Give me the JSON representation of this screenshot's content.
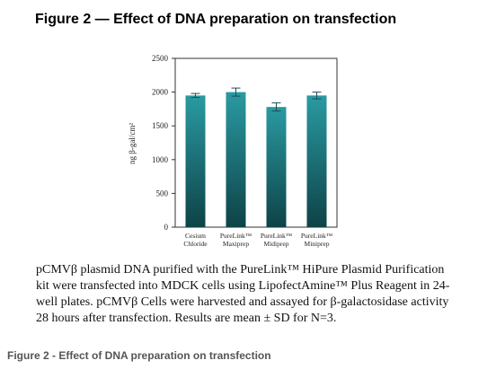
{
  "figure_title": "Figure 2 — Effect of DNA preparation on transfection",
  "caption": [
    "pCMVβ plasmid DNA purified with the PureLink™ HiPure Plasmid Purification",
    "kit were transfected into MDCK cells using LipofectAmine™ Plus Reagent in 24-",
    "well plates. pCMVβ Cells were harvested and assayed for β-galactosidase activity",
    "28 hours after transfection. Results are mean ± SD for N=3."
  ],
  "bottom_title": "Figure 2 - Effect of DNA preparation on transfection",
  "chart_data": {
    "type": "bar",
    "categories": [
      [
        "Cesium",
        "Chloride"
      ],
      [
        "PureLink™",
        "Maxiprep"
      ],
      [
        "PureLink™",
        "Midiprep"
      ],
      [
        "PureLink™",
        "Miniprep"
      ]
    ],
    "values": [
      1950,
      2000,
      1780,
      1950
    ],
    "error": [
      30,
      60,
      60,
      50
    ],
    "ylabel": "ng β-gal/cm²",
    "ylim": [
      0,
      2500
    ],
    "yticks": [
      0,
      500,
      1000,
      1500,
      2000,
      2500
    ],
    "bar_color_top": "#2a9aa2",
    "bar_color_bottom": "#0d4347",
    "grid": false,
    "legend": "none"
  }
}
